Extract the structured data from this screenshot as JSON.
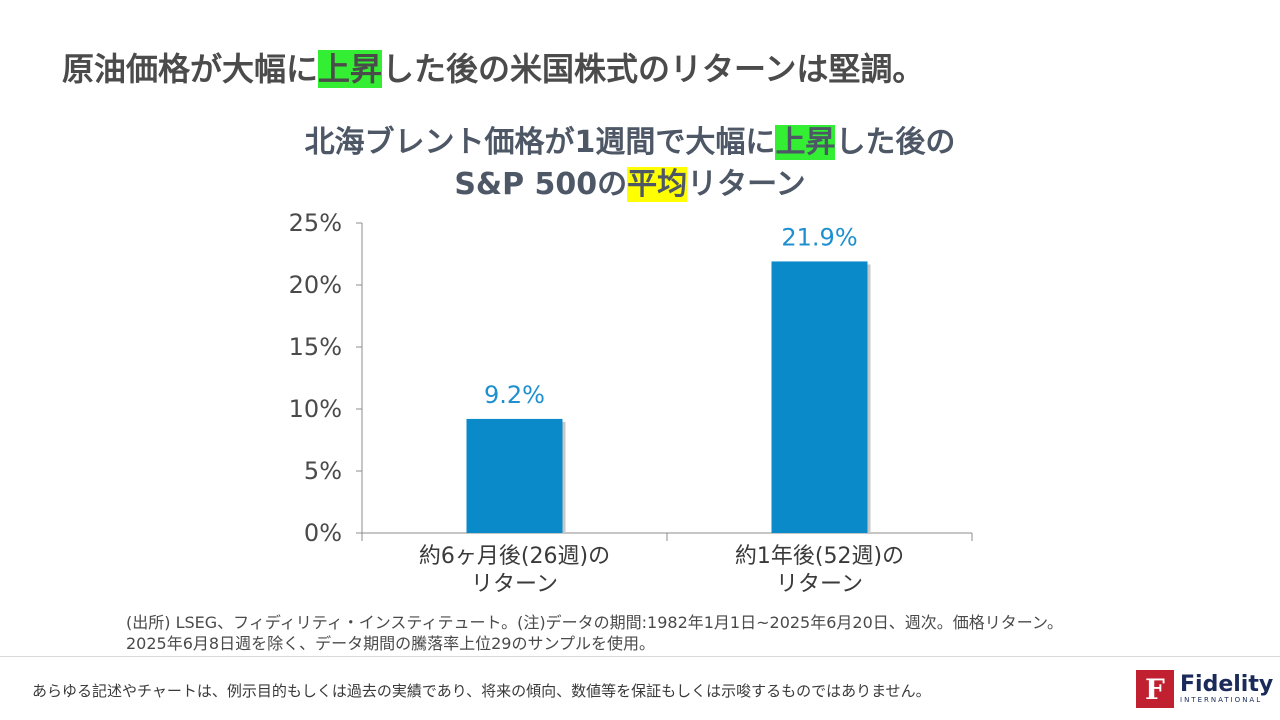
{
  "headline": {
    "pre": "原油価格が大幅に",
    "highlight": "上昇",
    "post": "した後の米国株式のリターンは堅調。"
  },
  "chart_title": {
    "line1_pre": "北海ブレント価格が1週間で大幅に",
    "line1_highlight": "上昇",
    "line1_post": "した後の",
    "line2_pre": "S&P 500の",
    "line2_highlight": "平均",
    "line2_post": "リターン"
  },
  "chart_data": {
    "type": "bar",
    "categories": [
      [
        "約6ヶ月後(26週)の",
        "リターン"
      ],
      [
        "約1年後(52週)の",
        "リターン"
      ]
    ],
    "values": [
      9.2,
      21.9
    ],
    "data_labels": [
      "9.2%",
      "21.9%"
    ],
    "ylim": [
      0,
      25
    ],
    "yticks": [
      "0%",
      "5%",
      "10%",
      "15%",
      "20%",
      "25%"
    ],
    "bar_color": "#0b8ac9",
    "label_color": "#1e8fcf",
    "grid": false
  },
  "note": {
    "line1": "(出所) LSEG、フィディリティ・インスティテュート。(注)データの期間:1982年1月1日~2025年6月20日、週次。価格リターン。",
    "line2": "2025年6月8日週を除く、データ期間の騰落率上位29のサンプルを使用。"
  },
  "disclaimer": "あらゆる記述やチャートは、例示目的もしくは過去の実績であり、将来の傾向、数値等を保証もしくは示唆するものではありません。",
  "logo": {
    "name": "Fidelity",
    "sub": "INTERNATIONAL",
    "mark": "F",
    "color": "#c0202f"
  }
}
